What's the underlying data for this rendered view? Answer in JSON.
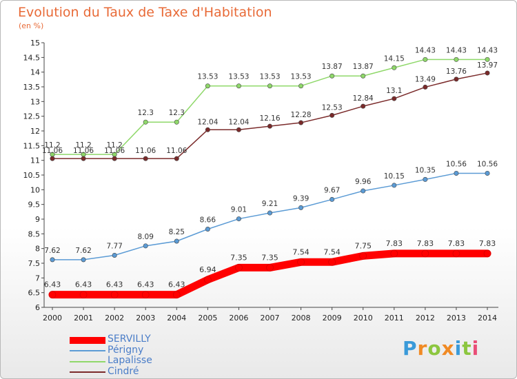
{
  "chart_data": {
    "type": "line",
    "title": "Evolution du Taux de Taxe d'Habitation",
    "ylabel": "(en %)",
    "x": [
      "2000",
      "2001",
      "2002",
      "2003",
      "2004",
      "2005",
      "2006",
      "2007",
      "2008",
      "2009",
      "2010",
      "2011",
      "2012",
      "2013",
      "2014"
    ],
    "ylim": [
      6,
      15
    ],
    "ytick_step": 0.5,
    "yticks": [
      "6",
      "6.5",
      "7",
      "7.5",
      "8",
      "8.5",
      "9",
      "9.5",
      "10",
      "10.5",
      "11",
      "11.5",
      "12",
      "12.5",
      "13",
      "13.5",
      "14",
      "14.5",
      "15"
    ],
    "grid": false,
    "legend_position": "bottom-left",
    "series": [
      {
        "name": "SERVILLY",
        "color": "#ff0000",
        "values": [
          6.43,
          6.43,
          6.43,
          6.43,
          6.43,
          6.94,
          7.35,
          7.35,
          7.54,
          7.54,
          7.75,
          7.83,
          7.83,
          7.83,
          7.83
        ],
        "labels": [
          "6.43",
          "6.43",
          "6.43",
          "6.43",
          "6.43",
          "6.94",
          "7.35",
          "7.35",
          "7.54",
          "7.54",
          "7.75",
          "7.83",
          "7.83",
          "7.83",
          "7.83"
        ]
      },
      {
        "name": "Périgny",
        "color": "#5b9bd5",
        "values": [
          7.62,
          7.62,
          7.77,
          8.09,
          8.25,
          8.66,
          9.01,
          9.21,
          9.39,
          9.67,
          9.96,
          10.15,
          10.35,
          10.56,
          10.56
        ],
        "labels": [
          "7.62",
          "7.62",
          "7.77",
          "8.09",
          "8.25",
          "8.66",
          "9.01",
          "9.21",
          "9.39",
          "9.67",
          "9.96",
          "10.15",
          "10.35",
          "10.56",
          "10.56"
        ]
      },
      {
        "name": "Lapalisse",
        "color": "#8fd86a",
        "values": [
          11.2,
          11.2,
          11.2,
          12.3,
          12.3,
          13.53,
          13.53,
          13.53,
          13.53,
          13.87,
          13.87,
          14.15,
          14.43,
          14.43,
          14.43
        ],
        "labels": [
          "11.2",
          "11.2",
          "11.2",
          "12.3",
          "12.3",
          "13.53",
          "13.53",
          "13.53",
          "13.53",
          "13.87",
          "13.87",
          "14.15",
          "14.43",
          "14.43",
          "14.43"
        ]
      },
      {
        "name": "Cindré",
        "color": "#7a2a2a",
        "values": [
          11.06,
          11.06,
          11.06,
          11.06,
          11.06,
          12.04,
          12.04,
          12.16,
          12.28,
          12.53,
          12.84,
          13.1,
          13.49,
          13.76,
          13.97
        ],
        "labels": [
          "11.06",
          "11.06",
          "11.06",
          "11.06",
          "11.06",
          "12.04",
          "12.04",
          "12.16",
          "12.28",
          "12.53",
          "12.84",
          "13.1",
          "13.49",
          "13.76",
          "13.97"
        ]
      }
    ]
  },
  "logo": {
    "letters": [
      "P",
      "r",
      "o",
      "x",
      "i",
      "t",
      "i"
    ],
    "colors": [
      "#3a9ad9",
      "#f08a24",
      "#8cc63f",
      "#f08a24",
      "#3a9ad9",
      "#8cc63f",
      "#e94e77"
    ]
  }
}
